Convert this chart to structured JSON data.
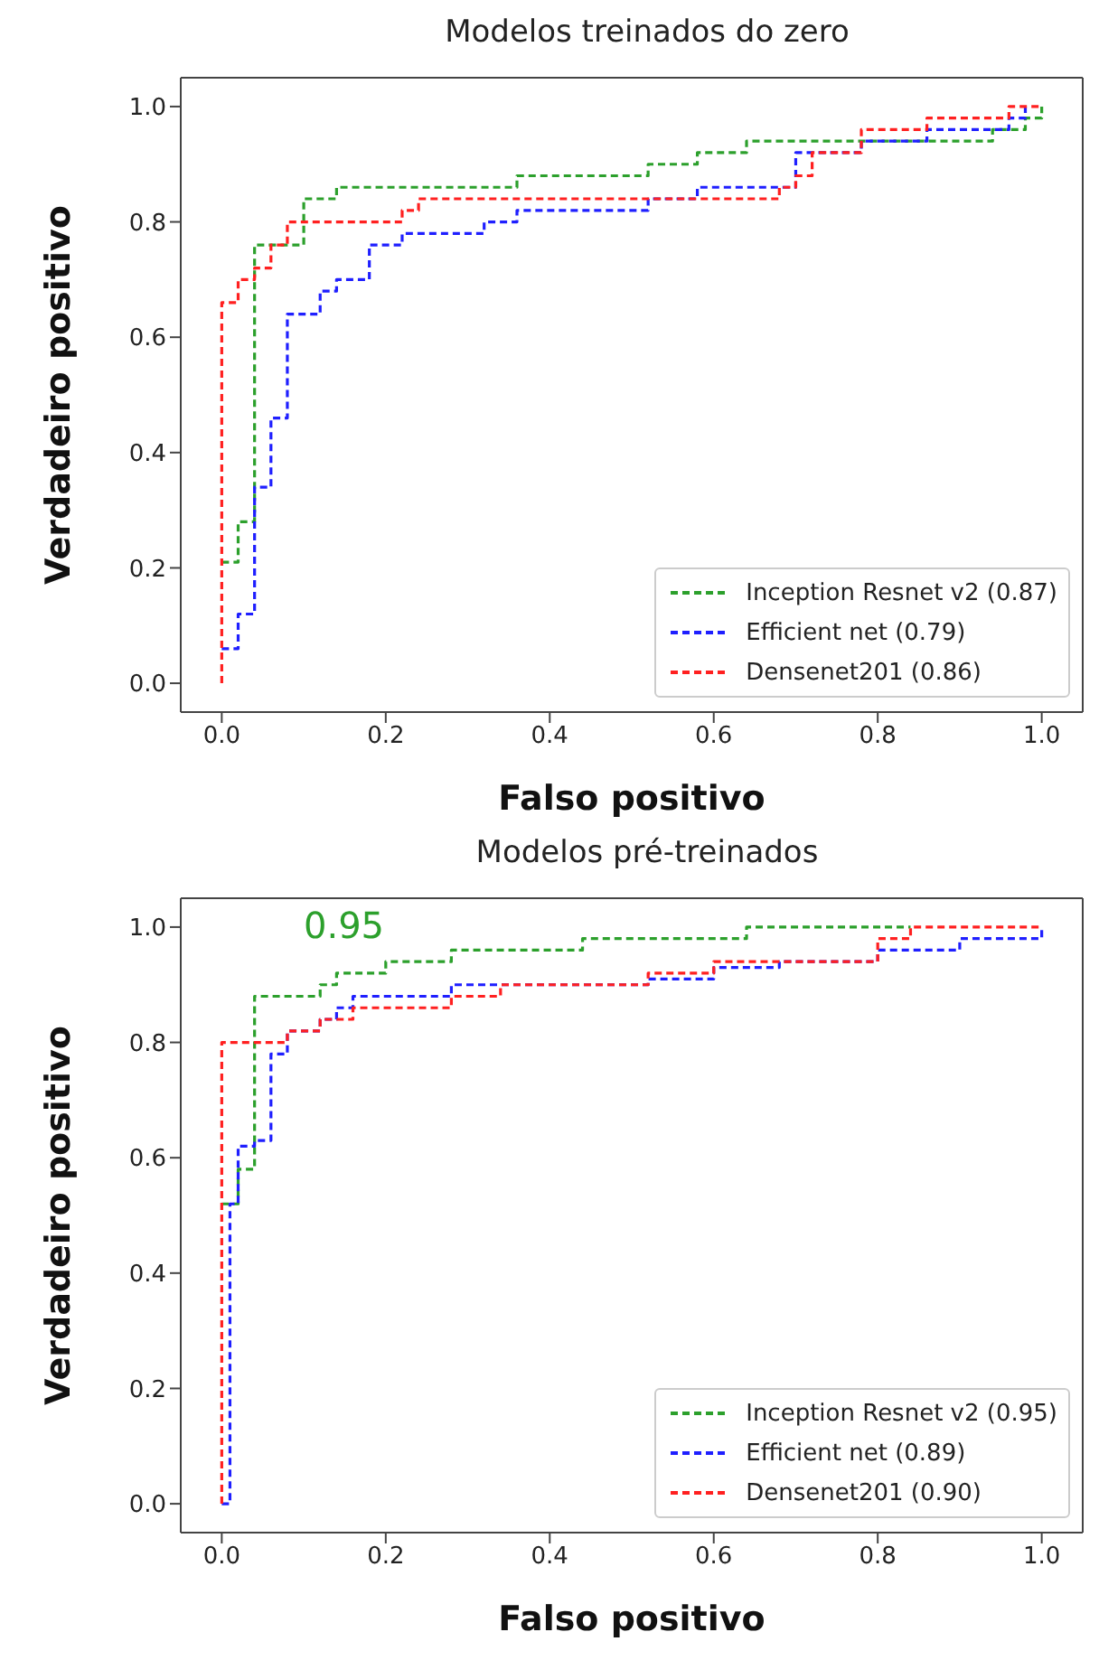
{
  "chart_data": [
    {
      "type": "step",
      "title": "Modelos treinados do zero",
      "xlabel": "Falso positivo",
      "ylabel": "Verdadeiro positivo",
      "xlim": [
        -0.05,
        1.05
      ],
      "ylim": [
        -0.05,
        1.05
      ],
      "xticks": [
        {
          "value": 0,
          "label": "0.0"
        },
        {
          "value": 0.2,
          "label": "0.2"
        },
        {
          "value": 0.4,
          "label": "0.4"
        },
        {
          "value": 0.6,
          "label": "0.6"
        },
        {
          "value": 0.8,
          "label": "0.8"
        },
        {
          "value": 1,
          "label": "1.0"
        }
      ],
      "yticks": [
        {
          "value": 0,
          "label": "0.0"
        },
        {
          "value": 0.2,
          "label": "0.2"
        },
        {
          "value": 0.4,
          "label": "0.4"
        },
        {
          "value": 0.6,
          "label": "0.6"
        },
        {
          "value": 0.8,
          "label": "0.8"
        },
        {
          "value": 1,
          "label": "1.0"
        }
      ],
      "grid": false,
      "legend": "bottom right",
      "line_style": "dashed",
      "series": [
        {
          "name": "Inception Resnet v2 (0.87)",
          "color": "#2ca02c",
          "x": [
            0,
            0.02,
            0.04,
            0.1,
            0.14,
            0.36,
            0.52,
            0.58,
            0.64,
            0.94,
            0.98,
            1
          ],
          "values": [
            0.21,
            0.28,
            0.76,
            0.84,
            0.86,
            0.88,
            0.9,
            0.92,
            0.94,
            0.96,
            0.98,
            1
          ]
        },
        {
          "name": "Efficient net (0.79)",
          "color": "#1f1fff",
          "x": [
            0,
            0.02,
            0.04,
            0.06,
            0.08,
            0.12,
            0.14,
            0.18,
            0.22,
            0.32,
            0.36,
            0.52,
            0.58,
            0.7,
            0.78,
            0.86,
            0.96,
            0.98
          ],
          "values": [
            0.06,
            0.12,
            0.34,
            0.46,
            0.64,
            0.68,
            0.7,
            0.76,
            0.78,
            0.8,
            0.82,
            0.84,
            0.86,
            0.92,
            0.94,
            0.96,
            0.98,
            1
          ]
        },
        {
          "name": "Densenet201 (0.86)",
          "color": "#ff2020",
          "x": [
            0,
            0,
            0.02,
            0.04,
            0.06,
            0.08,
            0.22,
            0.24,
            0.68,
            0.7,
            0.72,
            0.78,
            0.86,
            0.96,
            1
          ],
          "values": [
            0,
            0.66,
            0.7,
            0.72,
            0.76,
            0.8,
            0.82,
            0.84,
            0.86,
            0.88,
            0.92,
            0.96,
            0.98,
            1,
            1
          ]
        }
      ]
    },
    {
      "type": "step",
      "title": "Modelos pré-treinados",
      "xlabel": "Falso positivo",
      "ylabel": "Verdadeiro positivo",
      "xlim": [
        -0.05,
        1.05
      ],
      "ylim": [
        -0.05,
        1.05
      ],
      "xticks": [
        {
          "value": 0,
          "label": "0.0"
        },
        {
          "value": 0.2,
          "label": "0.2"
        },
        {
          "value": 0.4,
          "label": "0.4"
        },
        {
          "value": 0.6,
          "label": "0.6"
        },
        {
          "value": 0.8,
          "label": "0.8"
        },
        {
          "value": 1,
          "label": "1.0"
        }
      ],
      "yticks": [
        {
          "value": 0,
          "label": "0.0"
        },
        {
          "value": 0.2,
          "label": "0.2"
        },
        {
          "value": 0.4,
          "label": "0.4"
        },
        {
          "value": 0.6,
          "label": "0.6"
        },
        {
          "value": 0.8,
          "label": "0.8"
        },
        {
          "value": 1,
          "label": "1.0"
        }
      ],
      "grid": false,
      "legend": "bottom right",
      "line_style": "dashed",
      "annotations": [
        "0.95"
      ],
      "series": [
        {
          "name": "Inception Resnet v2 (0.95)",
          "color": "#2ca02c",
          "x": [
            0,
            0.02,
            0.04,
            0.12,
            0.14,
            0.2,
            0.28,
            0.44,
            0.64,
            0.84
          ],
          "values": [
            0.52,
            0.58,
            0.88,
            0.9,
            0.92,
            0.94,
            0.96,
            0.98,
            1,
            1
          ]
        },
        {
          "name": "Efficient net (0.89)",
          "color": "#1f1fff",
          "x": [
            0,
            0.01,
            0.02,
            0.04,
            0.06,
            0.08,
            0.12,
            0.14,
            0.16,
            0.28,
            0.52,
            0.6,
            0.68,
            0.8,
            0.9,
            1
          ],
          "values": [
            0,
            0.52,
            0.62,
            0.63,
            0.78,
            0.82,
            0.84,
            0.86,
            0.88,
            0.9,
            0.91,
            0.93,
            0.94,
            0.96,
            0.98,
            1
          ]
        },
        {
          "name": "Densenet201 (0.90)",
          "color": "#ff2020",
          "x": [
            0,
            0,
            0.08,
            0.12,
            0.16,
            0.28,
            0.34,
            0.52,
            0.6,
            0.8,
            0.84,
            1
          ],
          "values": [
            0,
            0.8,
            0.82,
            0.84,
            0.86,
            0.88,
            0.9,
            0.92,
            0.94,
            0.98,
            1,
            1
          ]
        }
      ]
    }
  ]
}
